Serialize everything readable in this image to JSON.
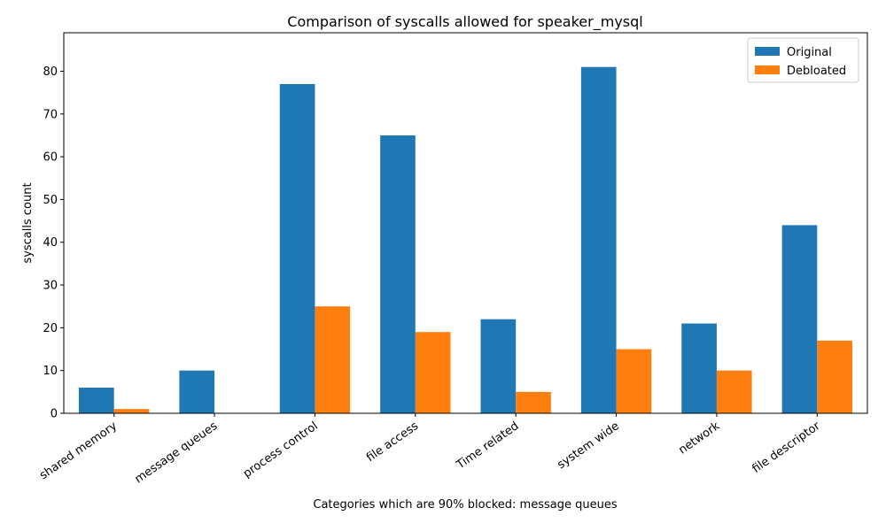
{
  "chart_data": {
    "type": "bar",
    "title": "Comparison of syscalls allowed for speaker_mysql",
    "xlabel": "Categories which are 90% blocked: message queues",
    "ylabel": "syscalls count",
    "categories": [
      "shared memory",
      "message queues",
      "process control",
      "file access",
      "Time related",
      "system wide",
      "network",
      "file descriptor"
    ],
    "series": [
      {
        "name": "Original",
        "color": "#1f77b4",
        "values": [
          6,
          10,
          77,
          65,
          22,
          81,
          21,
          44
        ]
      },
      {
        "name": "Debloated",
        "color": "#ff7f0e",
        "values": [
          1,
          0,
          25,
          19,
          5,
          15,
          10,
          17
        ]
      }
    ],
    "ylim": [
      0,
      89
    ],
    "yticks": [
      0,
      10,
      20,
      30,
      40,
      50,
      60,
      70,
      80
    ],
    "legend_position": "top-right",
    "grid": false
  }
}
